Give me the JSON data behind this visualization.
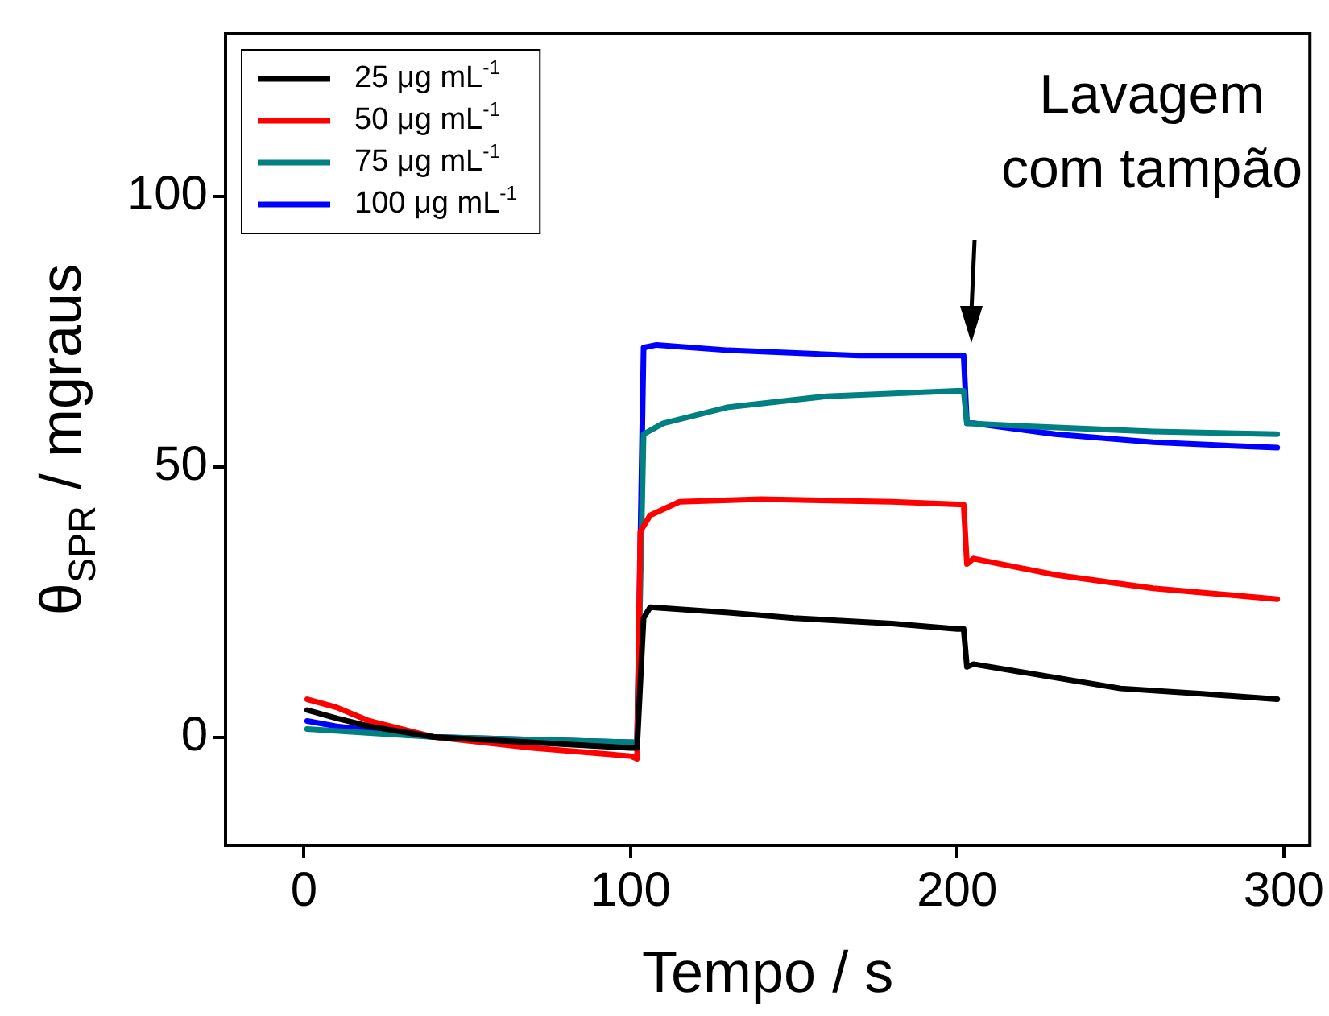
{
  "chart_data": {
    "type": "line",
    "xlabel": "Tempo / s",
    "ylabel": "θ$_{SPR}$ / mgraus",
    "xlim": [
      -24,
      308
    ],
    "ylim": [
      -20,
      130
    ],
    "xticks": [
      0,
      100,
      200,
      300
    ],
    "yticks": [
      0,
      50,
      100
    ],
    "grid": false,
    "legend": "top left",
    "marker": "none",
    "line_style": "solid",
    "annotations": [
      "Lavagem\ncom tampão"
    ],
    "series": [
      {
        "name": "25 μg mL$^{-1}$",
        "color": "#000000",
        "x": [
          1,
          10,
          20,
          40,
          70,
          100,
          102,
          104,
          106,
          130,
          150,
          180,
          200,
          202,
          203,
          205,
          220,
          250,
          275,
          298
        ],
        "values": [
          5,
          3.5,
          2,
          0,
          -1,
          -2,
          -2,
          22,
          24,
          23,
          22,
          21,
          20,
          20,
          13,
          13.5,
          12,
          9,
          8,
          7
        ]
      },
      {
        "name": "50 μg mL$^{-1}$",
        "color": "#ff0000",
        "x": [
          1,
          10,
          20,
          40,
          70,
          100,
          102,
          103,
          106,
          115,
          140,
          180,
          202,
          203,
          205,
          230,
          260,
          298
        ],
        "values": [
          7,
          5.5,
          3,
          0,
          -2,
          -3.5,
          -4,
          38,
          41,
          43.5,
          44,
          43.5,
          43,
          32,
          33,
          30,
          27.5,
          25.5
        ]
      },
      {
        "name": "75 μg mL$^{-1}$",
        "color": "#008080",
        "x": [
          1,
          40,
          102,
          104,
          110,
          130,
          160,
          200,
          202,
          203,
          220,
          260,
          298
        ],
        "values": [
          1.5,
          0,
          -1,
          56,
          58,
          61,
          63,
          64,
          64,
          58,
          57.5,
          56.5,
          56
        ]
      },
      {
        "name": "100 μg mL$^{-1}$",
        "color": "#0000ff",
        "x": [
          1,
          10,
          40,
          102,
          104,
          108,
          130,
          170,
          202,
          203,
          205,
          230,
          260,
          298
        ],
        "values": [
          3,
          2,
          0,
          -1,
          72,
          72.5,
          71.5,
          70.5,
          70.5,
          58,
          58,
          56,
          54.5,
          53.5
        ]
      }
    ]
  }
}
